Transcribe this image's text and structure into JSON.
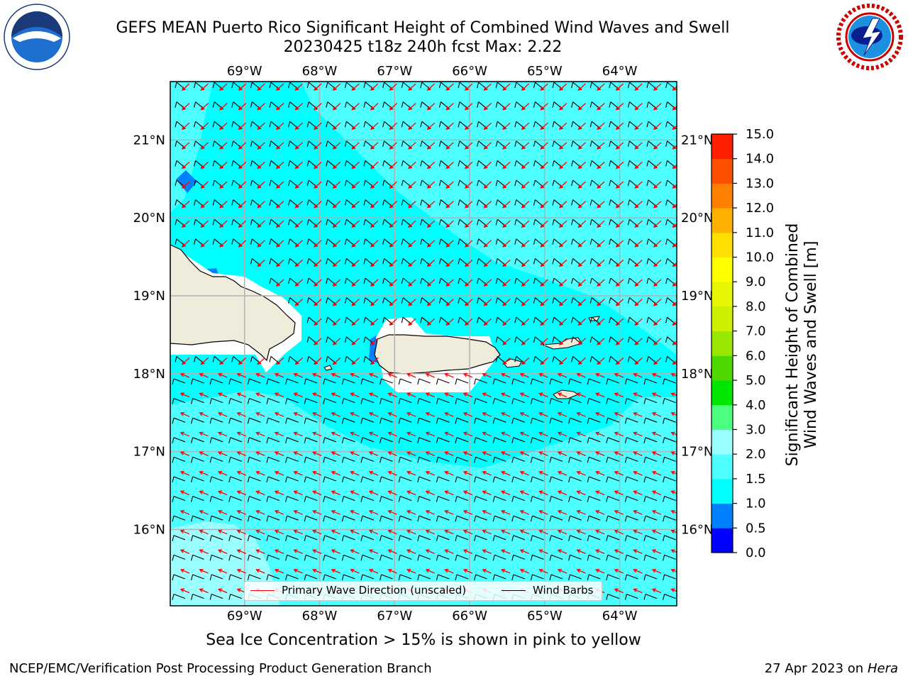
{
  "title_line1": "GEFS MEAN Puerto Rico Significant Height of Combined Wind Waves and Swell",
  "title_line2": "20230425 t18z 240h fcst   Max: 2.22",
  "map": {
    "lon_labels": [
      "69°W",
      "68°W",
      "67°W",
      "66°W",
      "65°W",
      "64°W"
    ],
    "lon_values": [
      -69,
      -68,
      -67,
      -66,
      -65,
      -64
    ],
    "lat_labels": [
      "21°N",
      "20°N",
      "19°N",
      "18°N",
      "17°N",
      "16°N"
    ],
    "lat_values": [
      21,
      20,
      19,
      18,
      17,
      16
    ],
    "lon_range": [
      -69.99,
      -63.24
    ],
    "lat_range": [
      15.02,
      21.75
    ],
    "ocean_color": "#00ffff",
    "lighter_sea_color": "#4dffff",
    "pale_sea_color": "#99ffff",
    "low_wave_color": "#0080ff",
    "land_color": "#f0ecdc",
    "arrow_color": "#ff0000",
    "barb_color": "#000000",
    "grid_color": "#b0b0b0"
  },
  "colorbar": {
    "label_line1": "Significant Height of Combined",
    "label_line2": "Wind Waves and Swell [m]",
    "ticks": [
      "15.0",
      "14.0",
      "13.0",
      "12.0",
      "11.0",
      "10.0",
      "9.0",
      "8.0",
      "7.0",
      "6.0",
      "5.0",
      "4.0",
      "3.0",
      "2.0",
      "1.5",
      "1.0",
      "0.5",
      "0.0"
    ],
    "colors_bottom_to_top": [
      "#0000ff",
      "#0080ff",
      "#00ffff",
      "#4dffff",
      "#99ffff",
      "#4dff80",
      "#00e600",
      "#4dd900",
      "#99e600",
      "#ccf000",
      "#e6f500",
      "#ffff00",
      "#ffe000",
      "#ffb000",
      "#ff8000",
      "#ff5000",
      "#ff2000"
    ]
  },
  "legend": {
    "wave_label": "Primary Wave Direction (unscaled)",
    "barb_label": "Wind Barbs"
  },
  "caption": "Sea Ice Concentration > 15% is shown in pink to yellow",
  "footer_left": "NCEP/EMC/Verification Post Processing Product Generation Branch",
  "footer_date": "27 Apr 2023 on ",
  "footer_machine": "Hera",
  "logos": {
    "left": "noaa-logo",
    "right": "nws-logo"
  }
}
